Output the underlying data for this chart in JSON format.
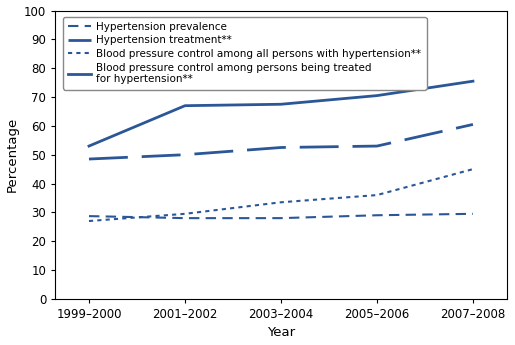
{
  "x_labels": [
    "1999–2000",
    "2001–2002",
    "2003–2004",
    "2005–2006",
    "2007–2008"
  ],
  "x_positions": [
    0,
    1,
    2,
    3,
    4
  ],
  "series": [
    {
      "name": "Hypertension prevalence",
      "values": [
        28.7,
        28.0,
        28.0,
        29.0,
        29.5
      ],
      "linestyle": "--",
      "linewidth": 1.5,
      "color": "#2b5797",
      "dashes": [
        5,
        3
      ]
    },
    {
      "name": "Hypertension treatment**",
      "values": [
        48.5,
        50.0,
        52.5,
        53.0,
        60.5
      ],
      "linestyle": "--",
      "linewidth": 2.0,
      "color": "#2b5797",
      "dashes": [
        14,
        5
      ]
    },
    {
      "name": "Blood pressure control among all persons with hypertension**",
      "values": [
        27.0,
        29.5,
        33.5,
        36.0,
        45.0
      ],
      "linestyle": "--",
      "linewidth": 1.5,
      "color": "#2b5797",
      "dashes": [
        2,
        2
      ]
    },
    {
      "name": "Blood pressure control among persons being treated\nfor hypertension**",
      "values": [
        53.0,
        67.0,
        67.5,
        70.5,
        75.5
      ],
      "linestyle": "-",
      "linewidth": 2.0,
      "color": "#2b5797",
      "dashes": null
    }
  ],
  "ylabel": "Percentage",
  "xlabel": "Year",
  "ylim": [
    0,
    100
  ],
  "yticks": [
    0,
    10,
    20,
    30,
    40,
    50,
    60,
    70,
    80,
    90,
    100
  ],
  "background_color": "#ffffff",
  "legend_fontsize": 7.5,
  "axis_fontsize": 9.5,
  "tick_fontsize": 8.5
}
